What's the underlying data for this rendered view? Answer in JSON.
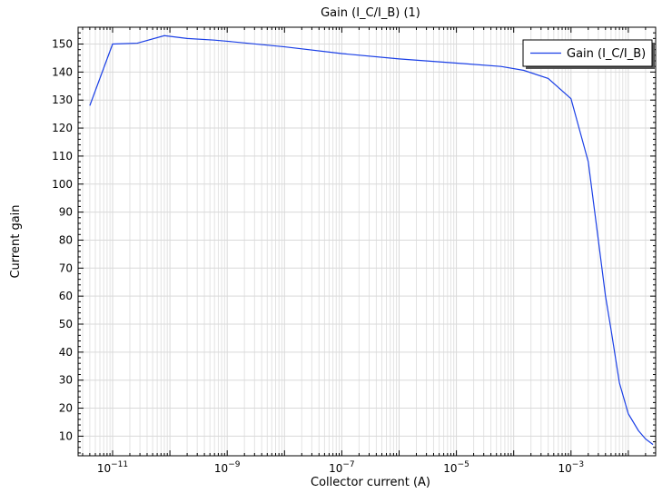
{
  "chart_data": {
    "type": "line",
    "title": "Gain (I_C/I_B) (1)",
    "xlabel": "Collector current (A)",
    "ylabel": "Current gain",
    "x_scale": "log",
    "xlim": [
      2.5e-12,
      0.03
    ],
    "ylim": [
      3,
      156
    ],
    "x_ticks": [
      1e-11,
      1e-09,
      1e-07,
      1e-05,
      0.001
    ],
    "x_tick_labels": [
      {
        "base": "10",
        "exp": "−11"
      },
      {
        "base": "10",
        "exp": "−9"
      },
      {
        "base": "10",
        "exp": "−7"
      },
      {
        "base": "10",
        "exp": "−5"
      },
      {
        "base": "10",
        "exp": "−3"
      }
    ],
    "y_ticks": [
      10,
      20,
      30,
      40,
      50,
      60,
      70,
      80,
      90,
      100,
      110,
      120,
      130,
      140,
      150
    ],
    "grid": true,
    "legend_position": "top-right",
    "series": [
      {
        "name": "Gain (I_C/I_B)",
        "color": "#1a3fe6",
        "points": [
          [
            4e-12,
            128
          ],
          [
            1e-11,
            150
          ],
          [
            2.7e-11,
            150.3
          ],
          [
            8e-11,
            153
          ],
          [
            2e-10,
            152
          ],
          [
            6e-10,
            151.4
          ],
          [
            1e-09,
            151
          ],
          [
            1e-08,
            149
          ],
          [
            1e-07,
            146.6
          ],
          [
            1e-06,
            144.7
          ],
          [
            1e-05,
            143.2
          ],
          [
            6e-05,
            142
          ],
          [
            0.00015,
            140.6
          ],
          [
            0.0004,
            137.7
          ],
          [
            0.001,
            130.5
          ],
          [
            0.002,
            108
          ],
          [
            0.003,
            80
          ],
          [
            0.004,
            60
          ],
          [
            0.005,
            48
          ],
          [
            0.007,
            29
          ],
          [
            0.01,
            18
          ],
          [
            0.015,
            12
          ],
          [
            0.02,
            9
          ],
          [
            0.027,
            7
          ]
        ]
      }
    ]
  }
}
